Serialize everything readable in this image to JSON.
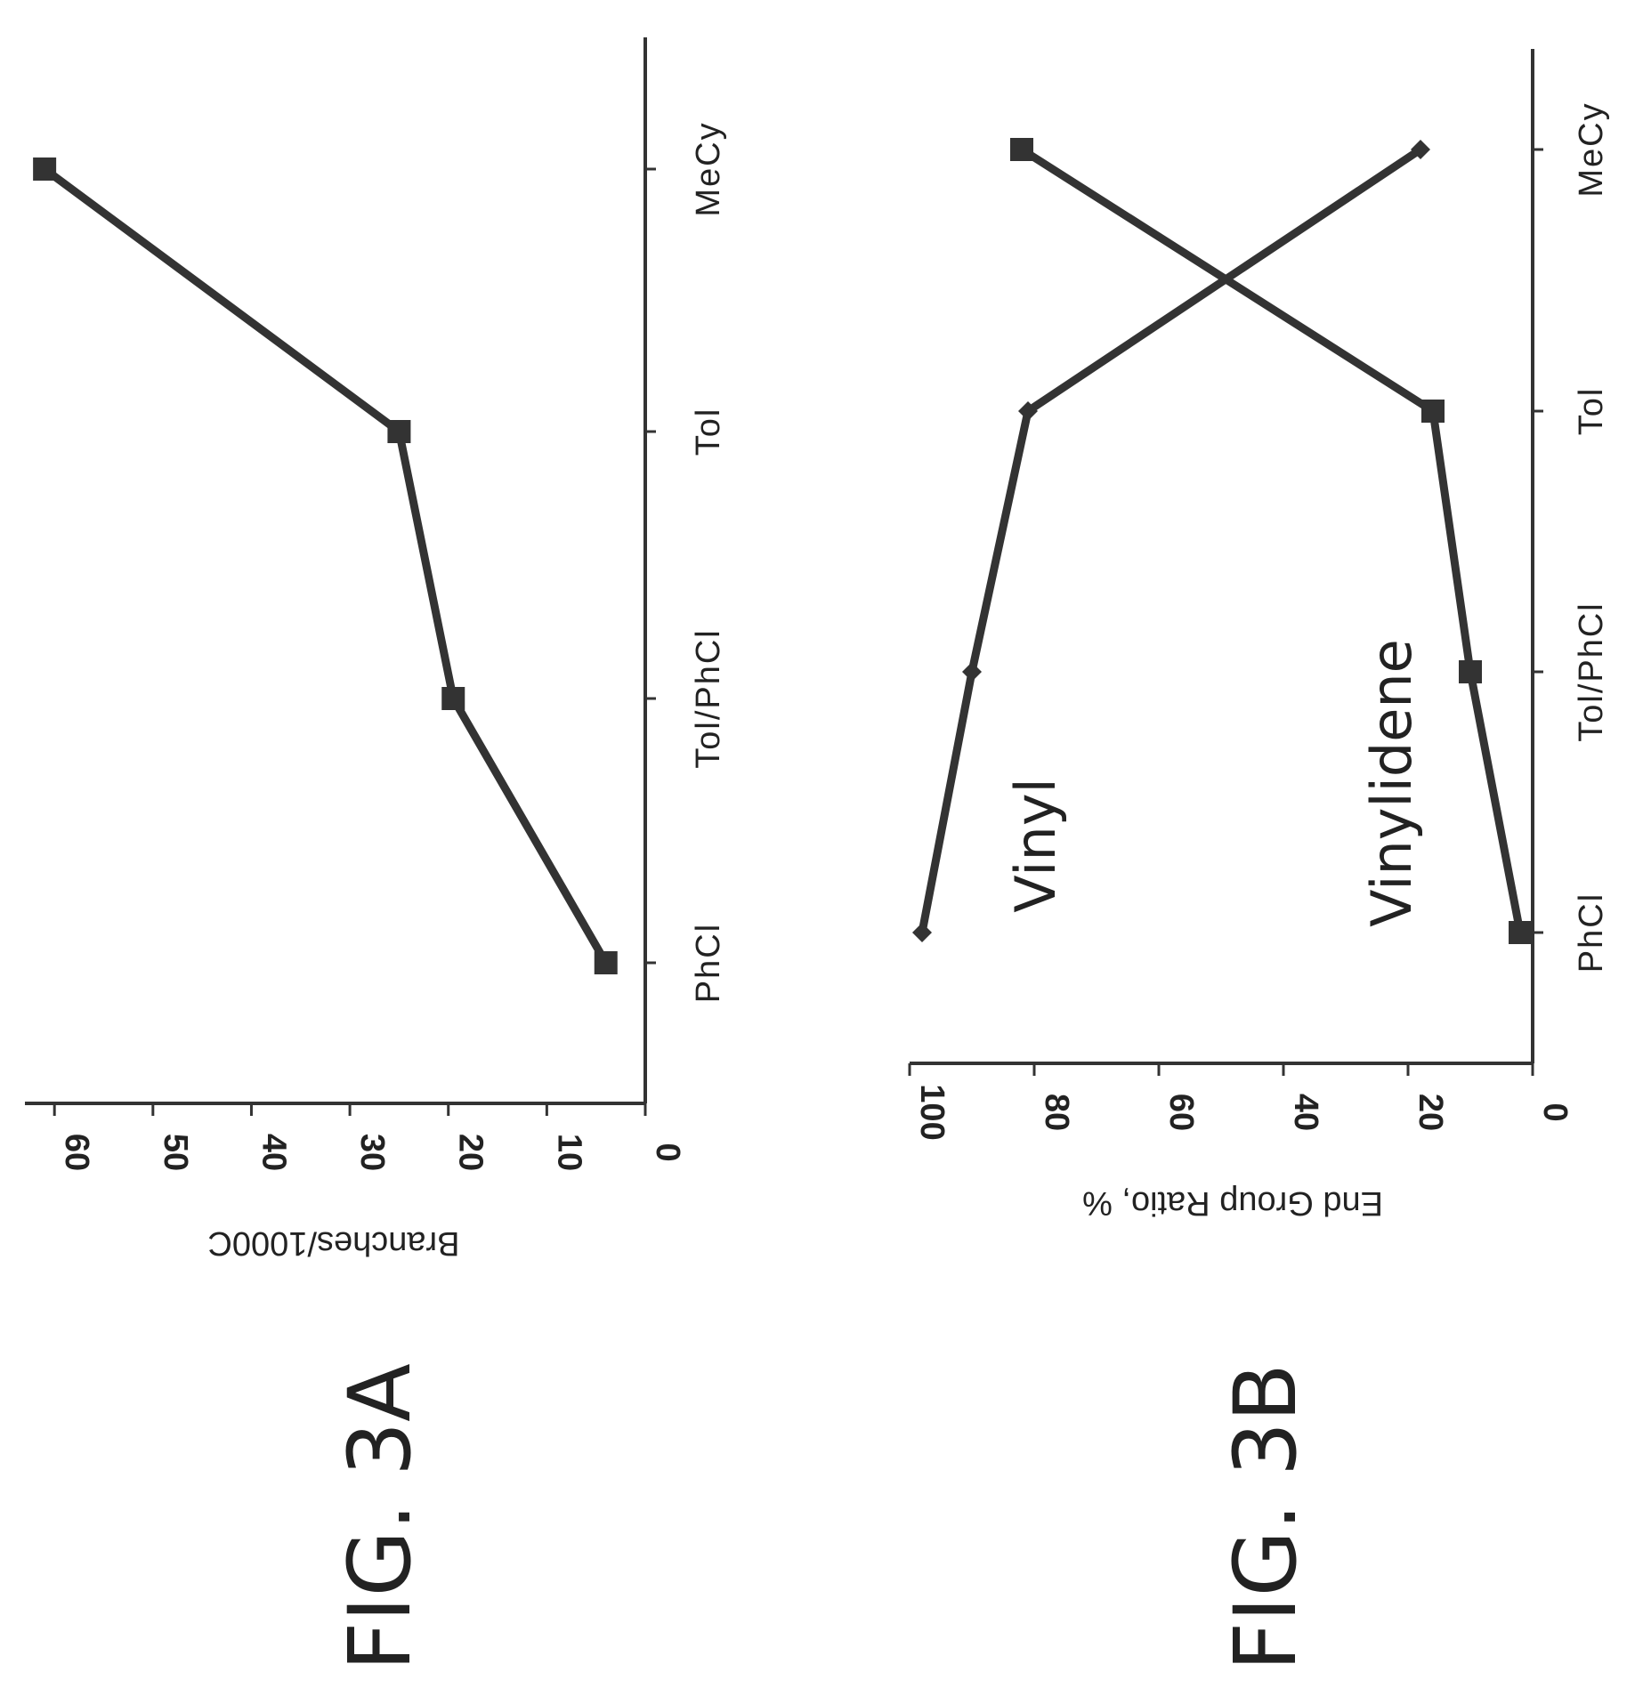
{
  "figures": [
    {
      "id": "3A",
      "label": "FIG. 3A"
    },
    {
      "id": "3B",
      "label": "FIG. 3B"
    }
  ],
  "chart_data": [
    {
      "id": "3A",
      "type": "line",
      "orientation": "rotated-90",
      "categories": [
        "PhCl",
        "Tol/PhCl",
        "Tol",
        "MeCy"
      ],
      "series": [
        {
          "values": [
            4,
            19.5,
            25,
            61
          ],
          "marker": "square"
        }
      ],
      "ylabel": "Branches/1000C",
      "xlabel": "",
      "ylim": [
        0,
        63
      ],
      "yticks": [
        0,
        10,
        20,
        30,
        40,
        50,
        60
      ],
      "grid": false,
      "line_color": "#333333"
    },
    {
      "id": "3B",
      "type": "line",
      "orientation": "rotated-90",
      "categories": [
        "PhCl",
        "Tol/PhCl",
        "Tol",
        "MeCy"
      ],
      "series": [
        {
          "name": "Vinyl",
          "values": [
            98,
            90,
            81,
            18
          ],
          "marker": "diamond"
        },
        {
          "name": "Vinylidene",
          "values": [
            2,
            10,
            16,
            82
          ],
          "marker": "square"
        }
      ],
      "ylabel": "End Group Ratio, %",
      "xlabel": "",
      "ylim": [
        0,
        100
      ],
      "yticks": [
        0,
        20,
        40,
        60,
        80,
        100
      ],
      "grid": false,
      "line_color": "#333333"
    }
  ]
}
